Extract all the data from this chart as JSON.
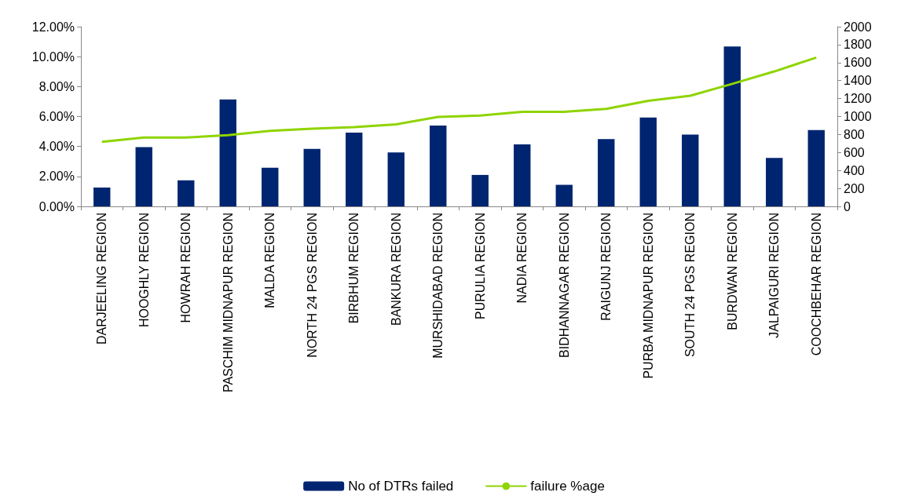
{
  "chart_data": {
    "type": "bar",
    "categories": [
      "DARJEELING REGION",
      "HOOGHLY REGION",
      "HOWRAH REGION",
      "PASCHIM MIDNAPUR REGION",
      "MALDA REGION",
      "NORTH 24 PGS REGION",
      "BIRBHUM REGION",
      "BANKURA REGION",
      "MURSHIDABAD REGION",
      "PURULIA REGION",
      "NADIA REGION",
      "BIDHANNAGAR REGION",
      "RAIGUNJ REGION",
      "PURBA MIDNAPUR REGION",
      "SOUTH 24 PGS REGION",
      "BURDWAN REGION",
      "JALPAIGURI REGION",
      "COOCHBEHAR REGION"
    ],
    "series": [
      {
        "name": "No of DTRs failed",
        "axis": "y2",
        "color": "#002570",
        "values": [
          210,
          660,
          290,
          1190,
          430,
          640,
          820,
          600,
          900,
          350,
          690,
          240,
          750,
          990,
          800,
          1780,
          540,
          850
        ]
      },
      {
        "name": "failure %age",
        "type": "line",
        "color": "#8fd400",
        "values": [
          4.31,
          4.6,
          4.6,
          4.75,
          5.04,
          5.19,
          5.29,
          5.48,
          5.97,
          6.07,
          6.32,
          6.32,
          6.51,
          7.05,
          7.39,
          8.18,
          9.01,
          9.94
        ]
      }
    ],
    "ylim": [
      0,
      12
    ],
    "yticks": [
      {
        "value": 0,
        "label": "0.00%"
      },
      {
        "value": 2,
        "label": "2.00%"
      },
      {
        "value": 4,
        "label": "4.00%"
      },
      {
        "value": 6,
        "label": "6.00%"
      },
      {
        "value": 8,
        "label": "8.00%"
      },
      {
        "value": 10,
        "label": "10.00%"
      },
      {
        "value": 12,
        "label": "12.00%"
      }
    ],
    "y2lim": [
      0,
      2000
    ],
    "y2ticks": [
      0,
      200,
      400,
      600,
      800,
      1000,
      1200,
      1400,
      1600,
      1800,
      2000
    ],
    "grid": false,
    "legend": "bottom",
    "marker": "none"
  }
}
